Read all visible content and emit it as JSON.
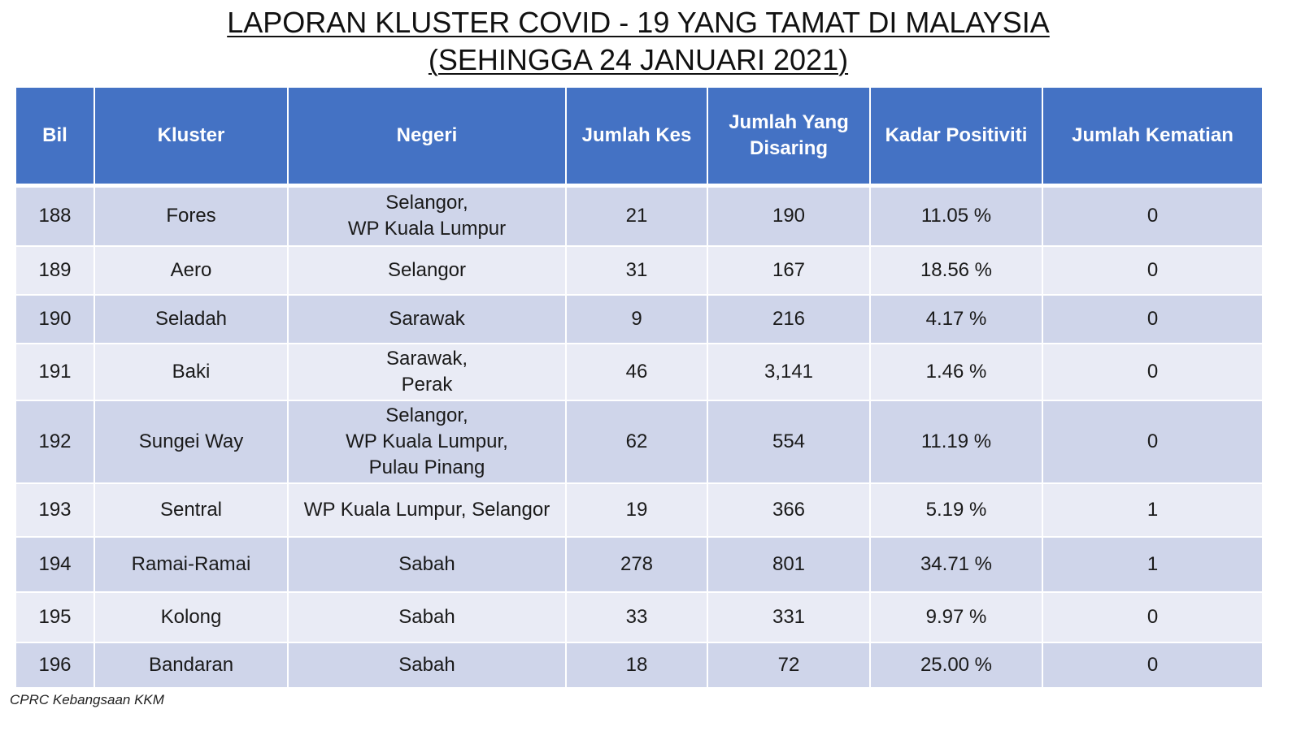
{
  "title": {
    "line1": "LAPORAN KLUSTER COVID - 19 YANG TAMAT DI MALAYSIA",
    "line2": "(SEHINGGA 24 JANUARI 2021)"
  },
  "table": {
    "headers": [
      "Bil",
      "Kluster",
      "Negeri",
      "Jumlah Kes",
      "Jumlah Yang Disaring",
      "Kadar Positiviti",
      "Jumlah Kematian"
    ],
    "rows": [
      {
        "bil": "188",
        "kluster": "Fores",
        "negeri": [
          "Selangor,",
          "WP Kuala Lumpur"
        ],
        "kes": "21",
        "disaring": "190",
        "positiviti": "11.05 %",
        "kematian": "0"
      },
      {
        "bil": "189",
        "kluster": "Aero",
        "negeri": [
          "Selangor"
        ],
        "kes": "31",
        "disaring": "167",
        "positiviti": "18.56 %",
        "kematian": "0"
      },
      {
        "bil": "190",
        "kluster": "Seladah",
        "negeri": [
          "Sarawak"
        ],
        "kes": "9",
        "disaring": "216",
        "positiviti": "4.17 %",
        "kematian": "0"
      },
      {
        "bil": "191",
        "kluster": "Baki",
        "negeri": [
          "Sarawak,",
          "Perak"
        ],
        "kes": "46",
        "disaring": "3,141",
        "positiviti": "1.46 %",
        "kematian": "0"
      },
      {
        "bil": "192",
        "kluster": "Sungei Way",
        "negeri": [
          "Selangor,",
          "WP Kuala Lumpur,",
          "Pulau Pinang"
        ],
        "kes": "62",
        "disaring": "554",
        "positiviti": "11.19 %",
        "kematian": "0"
      },
      {
        "bil": "193",
        "kluster": "Sentral",
        "negeri": [
          "WP Kuala Lumpur, Selangor"
        ],
        "kes": "19",
        "disaring": "366",
        "positiviti": "5.19 %",
        "kematian": "1"
      },
      {
        "bil": "194",
        "kluster": "Ramai-Ramai",
        "negeri": [
          "Sabah"
        ],
        "kes": "278",
        "disaring": "801",
        "positiviti": "34.71 %",
        "kematian": "1"
      },
      {
        "bil": "195",
        "kluster": "Kolong",
        "negeri": [
          "Sabah"
        ],
        "kes": "33",
        "disaring": "331",
        "positiviti": "9.97 %",
        "kematian": "0"
      },
      {
        "bil": "196",
        "kluster": "Bandaran",
        "negeri": [
          "Sabah"
        ],
        "kes": "18",
        "disaring": "72",
        "positiviti": "25.00 %",
        "kematian": "0"
      }
    ]
  },
  "source": "CPRC Kebangsaan KKM",
  "colors": {
    "header_bg": "#4472c4",
    "row_dark": "#cfd5ea",
    "row_light": "#e9ebf5"
  }
}
